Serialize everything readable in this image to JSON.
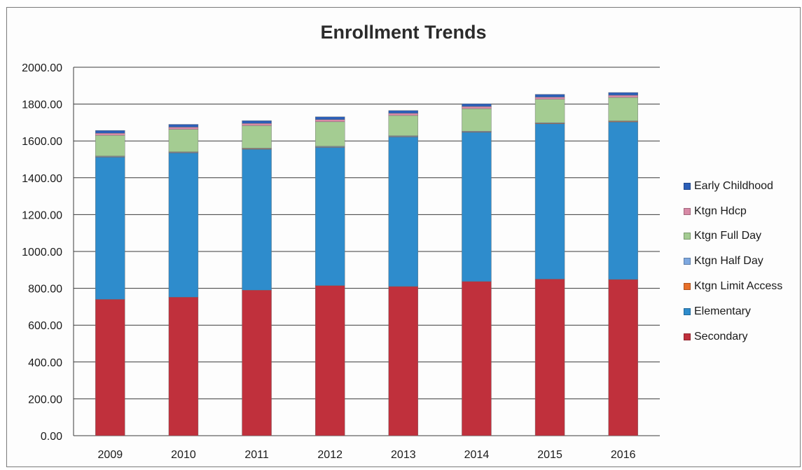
{
  "chart_data": {
    "type": "bar",
    "stacked": true,
    "title": "Enrollment Trends",
    "xlabel": "",
    "ylabel": "",
    "ylim": [
      0,
      2000
    ],
    "yticks": [
      "0.00",
      "200.00",
      "400.00",
      "600.00",
      "800.00",
      "1000.00",
      "1200.00",
      "1400.00",
      "1600.00",
      "1800.00",
      "2000.00"
    ],
    "grid": true,
    "legend_position": "right",
    "categories": [
      "2009",
      "2010",
      "2011",
      "2012",
      "2013",
      "2014",
      "2015",
      "2016"
    ],
    "series": [
      {
        "name": "Secondary",
        "color": "#c0303c",
        "values": [
          740,
          752,
          790,
          815,
          810,
          837,
          850,
          848
        ]
      },
      {
        "name": "Elementary",
        "color": "#2e8ccc",
        "values": [
          772,
          783,
          765,
          750,
          812,
          810,
          843,
          855
        ]
      },
      {
        "name": "Ktgn Limit Access",
        "color": "#e8702a",
        "values": [
          3,
          3,
          3,
          3,
          3,
          3,
          3,
          3
        ]
      },
      {
        "name": "Ktgn Half Day",
        "color": "#7ea8e0",
        "values": [
          3,
          3,
          3,
          3,
          3,
          3,
          3,
          3
        ]
      },
      {
        "name": "Ktgn Full Day",
        "color": "#a4cc92",
        "values": [
          112,
          122,
          122,
          133,
          110,
          122,
          127,
          127
        ]
      },
      {
        "name": "Ktgn Hdcp",
        "color": "#d88aa6",
        "values": [
          12,
          12,
          12,
          12,
          12,
          12,
          12,
          12
        ]
      },
      {
        "name": "Early Childhood",
        "color": "#2c5fb8",
        "values": [
          15,
          15,
          15,
          15,
          15,
          15,
          15,
          15
        ]
      }
    ],
    "legend_order": [
      "Early Childhood",
      "Ktgn Hdcp",
      "Ktgn Full Day",
      "Ktgn Half Day",
      "Ktgn Limit Access",
      "Elementary",
      "Secondary"
    ]
  }
}
